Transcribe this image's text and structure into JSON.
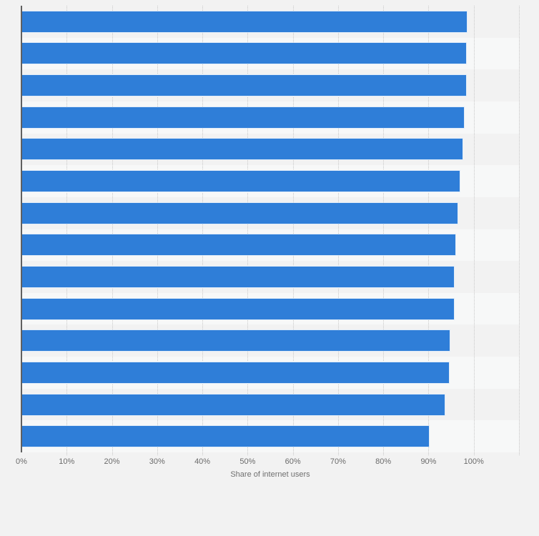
{
  "chart_data": {
    "type": "bar",
    "orientation": "horizontal",
    "title": "",
    "xlabel": "Share of internet users",
    "ylabel": "",
    "values": [
      98.6,
      98.4,
      98.4,
      98.0,
      97.7,
      97.1,
      96.5,
      96.1,
      95.8,
      95.7,
      94.9,
      94.7,
      93.7,
      90.3
    ],
    "unit": "%",
    "x_ticks": [
      "0%",
      "10%",
      "20%",
      "30%",
      "40%",
      "50%",
      "60%",
      "70%",
      "80%",
      "90%",
      "100%"
    ],
    "tick_step": 10,
    "xlim": [
      0,
      110
    ],
    "grid": "vertical-dotted",
    "legend": "none",
    "category_labels_visible": false
  },
  "colors": {
    "bar": "#2f7ed8",
    "bar_border": "rgba(255,255,255,0.85)",
    "band_alt": "#f7f8f8",
    "gridline": "#c8c8c8",
    "axis_line": "#606060",
    "label": "#6b6b6b",
    "background": "#f2f2f2"
  }
}
